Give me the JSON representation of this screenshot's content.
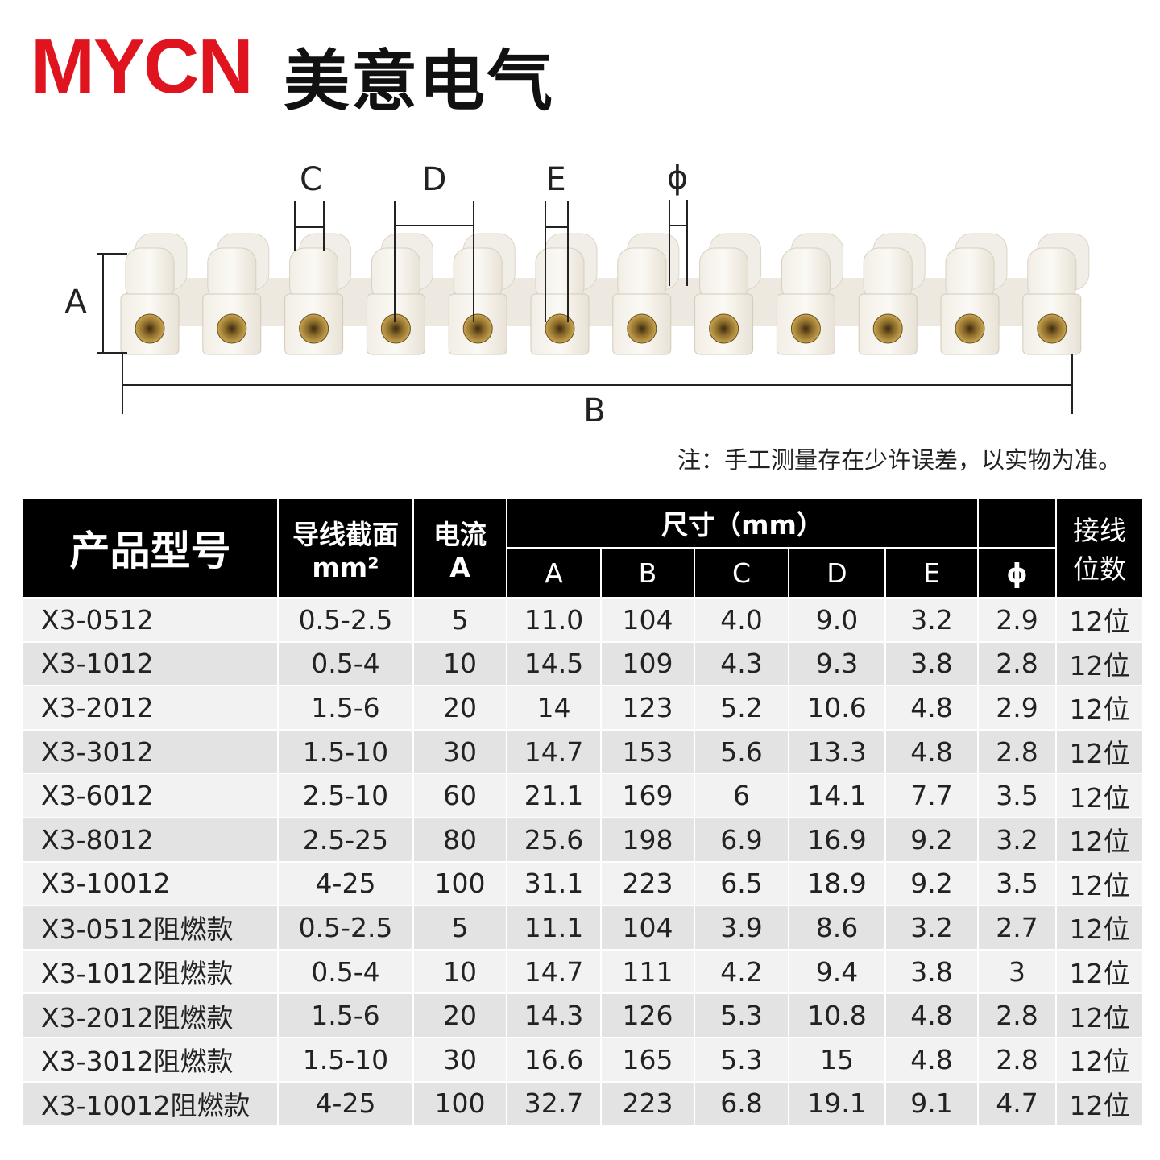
{
  "header": {
    "brand": "MYCN",
    "brand_cn": "美意电气"
  },
  "diagram": {
    "labels": {
      "c": "C",
      "d": "D",
      "e": "E",
      "phi": "ϕ",
      "a": "A",
      "b": "B"
    },
    "note": "注：手工测量存在少许误差，以实物为准。"
  },
  "table": {
    "header": {
      "model": "产品型号",
      "wire_1": "导线截面",
      "wire_2": "mm²",
      "current_1": "电流",
      "current_2": "A",
      "size": "尺寸（mm）",
      "size_cols": [
        "A",
        "B",
        "C",
        "D",
        "E"
      ],
      "phi": "ϕ",
      "positions_1": "接线",
      "positions_2": "位数"
    },
    "rows": [
      [
        "X3-0512",
        "0.5-2.5",
        "5",
        "11.0",
        "104",
        "4.0",
        "9.0",
        "3.2",
        "2.9",
        "12位"
      ],
      [
        "X3-1012",
        "0.5-4",
        "10",
        "14.5",
        "109",
        "4.3",
        "9.3",
        "3.8",
        "2.8",
        "12位"
      ],
      [
        "X3-2012",
        "1.5-6",
        "20",
        "14",
        "123",
        "5.2",
        "10.6",
        "4.8",
        "2.9",
        "12位"
      ],
      [
        "X3-3012",
        "1.5-10",
        "30",
        "14.7",
        "153",
        "5.6",
        "13.3",
        "4.8",
        "2.8",
        "12位"
      ],
      [
        "X3-6012",
        "2.5-10",
        "60",
        "21.1",
        "169",
        "6",
        "14.1",
        "7.7",
        "3.5",
        "12位"
      ],
      [
        "X3-8012",
        "2.5-25",
        "80",
        "25.6",
        "198",
        "6.9",
        "16.9",
        "9.2",
        "3.2",
        "12位"
      ],
      [
        "X3-10012",
        "4-25",
        "100",
        "31.1",
        "223",
        "6.5",
        "18.9",
        "9.2",
        "3.5",
        "12位"
      ],
      [
        "X3-0512阻燃款",
        "0.5-2.5",
        "5",
        "11.1",
        "104",
        "3.9",
        "8.6",
        "3.2",
        "2.7",
        "12位"
      ],
      [
        "X3-1012阻燃款",
        "0.5-4",
        "10",
        "14.7",
        "111",
        "4.2",
        "9.4",
        "3.8",
        "3",
        "12位"
      ],
      [
        "X3-2012阻燃款",
        "1.5-6",
        "20",
        "14.3",
        "126",
        "5.3",
        "10.8",
        "4.8",
        "2.8",
        "12位"
      ],
      [
        "X3-3012阻燃款",
        "1.5-10",
        "30",
        "16.6",
        "165",
        "5.3",
        "15",
        "4.8",
        "2.8",
        "12位"
      ],
      [
        "X3-10012阻燃款",
        "4-25",
        "100",
        "32.7",
        "223",
        "6.8",
        "19.1",
        "9.1",
        "4.7",
        "12位"
      ]
    ]
  }
}
